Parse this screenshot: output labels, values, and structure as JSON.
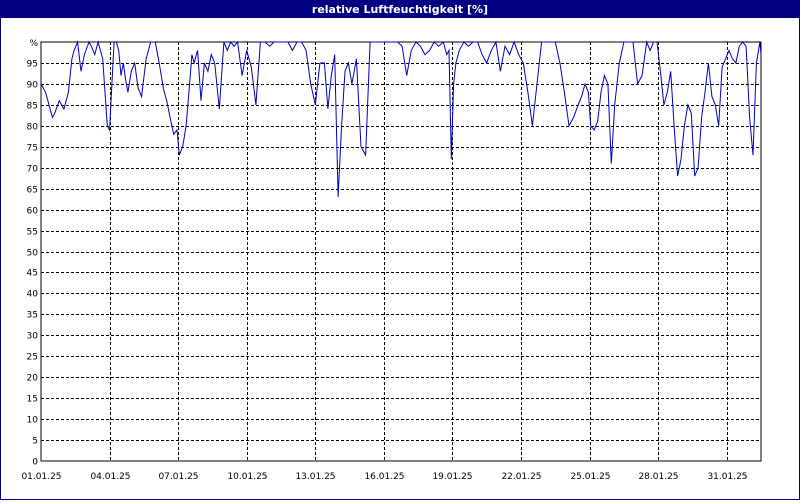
{
  "window": {
    "title": "relative Luftfeuchtigkeit [%]"
  },
  "chart_data": {
    "type": "line",
    "title": "relative Luftfeuchtigkeit [%]",
    "y_unit_label": "%",
    "ylim": [
      0,
      100
    ],
    "y_ticks": [
      0,
      5,
      10,
      15,
      20,
      25,
      30,
      35,
      40,
      45,
      50,
      55,
      60,
      65,
      70,
      75,
      80,
      85,
      90,
      95
    ],
    "x_ticks": [
      "01.01.25",
      "04.01.25",
      "07.01.25",
      "10.01.25",
      "13.01.25",
      "16.01.25",
      "19.01.25",
      "22.01.25",
      "25.01.25",
      "28.01.25",
      "31.01.25"
    ],
    "x_range_days": [
      0,
      31.5
    ],
    "grid": true,
    "line_color": "#0000c0",
    "series": [
      {
        "x": [
          0.0,
          0.2,
          0.35,
          0.5,
          0.6,
          0.8,
          1.0,
          1.2,
          1.35,
          1.45,
          1.6,
          1.75,
          1.9,
          2.1,
          2.2,
          2.35,
          2.5,
          2.7,
          2.9,
          3.0,
          3.1,
          3.2,
          3.3,
          3.4,
          3.5,
          3.6,
          3.7,
          3.8,
          3.95,
          4.1,
          4.25,
          4.4,
          4.6,
          4.8,
          5.0,
          5.2,
          5.35,
          5.5,
          5.65,
          5.8,
          5.95,
          6.05,
          6.2,
          6.35,
          6.5,
          6.6,
          6.7,
          6.85,
          7.0,
          7.15,
          7.3,
          7.45,
          7.6,
          7.8,
          8.0,
          8.15,
          8.3,
          8.45,
          8.6,
          8.8,
          9.0,
          9.2,
          9.4,
          9.6,
          9.8,
          10.0,
          10.2,
          10.4,
          10.6,
          10.8,
          11.0,
          11.2,
          11.4,
          11.6,
          11.8,
          12.0,
          12.2,
          12.4,
          12.55,
          12.7,
          12.85,
          13.0,
          13.15,
          13.3,
          13.45,
          13.6,
          13.8,
          14.0,
          14.2,
          14.4,
          14.55,
          14.7,
          14.85,
          15.0,
          15.2,
          15.4,
          15.6,
          15.8,
          16.0,
          16.2,
          16.4,
          16.6,
          16.8,
          17.0,
          17.2,
          17.4,
          17.6,
          17.75,
          17.85,
          17.95,
          18.05,
          18.15,
          18.3,
          18.5,
          18.7,
          18.9,
          19.1,
          19.3,
          19.5,
          19.7,
          19.9,
          20.1,
          20.3,
          20.5,
          20.7,
          20.9,
          21.1,
          21.3,
          21.5,
          21.7,
          21.9,
          22.1,
          22.3,
          22.5,
          22.7,
          22.9,
          23.1,
          23.3,
          23.5,
          23.65,
          23.8,
          23.95,
          24.05,
          24.2,
          24.35,
          24.5,
          24.65,
          24.8,
          24.95,
          25.1,
          25.3,
          25.5,
          25.7,
          25.9,
          26.1,
          26.3,
          26.5,
          26.65,
          26.8,
          26.95,
          27.1,
          27.25,
          27.4,
          27.55,
          27.7,
          27.85,
          28.0,
          28.15,
          28.3,
          28.45,
          28.6,
          28.75,
          28.9,
          29.05,
          29.2,
          29.35,
          29.5,
          29.65,
          29.8,
          29.95,
          30.1,
          30.25,
          30.4,
          30.55,
          30.7,
          30.85,
          31.0,
          31.15,
          31.3,
          31.45,
          31.5
        ],
        "y": [
          90,
          88,
          85,
          82,
          83,
          86,
          84,
          88,
          96,
          98,
          100,
          93,
          97,
          100,
          99,
          97,
          100,
          96,
          80,
          79,
          90,
          100,
          100,
          98,
          92,
          95,
          91,
          88,
          93,
          95,
          89,
          87,
          96,
          100,
          100,
          94,
          89,
          86,
          82,
          78,
          79,
          73,
          75,
          80,
          90,
          97,
          95,
          98,
          86,
          95,
          93,
          97,
          95,
          84,
          100,
          98,
          100,
          99,
          100,
          92,
          98,
          94,
          85,
          100,
          100,
          99,
          100,
          100,
          100,
          100,
          98,
          100,
          100,
          98,
          90,
          85,
          95,
          95,
          84,
          92,
          97,
          63,
          80,
          93,
          95,
          90,
          96,
          75,
          73,
          100,
          100,
          100,
          100,
          100,
          100,
          100,
          100,
          99,
          92,
          98,
          100,
          99,
          97,
          98,
          100,
          99,
          100,
          97,
          98,
          72,
          90,
          95,
          98,
          100,
          99,
          100,
          100,
          97,
          95,
          98,
          100,
          93,
          99,
          97,
          100,
          97,
          95,
          88,
          80,
          90,
          100,
          100,
          100,
          100,
          95,
          88,
          80,
          82,
          85,
          87,
          90,
          88,
          80,
          79,
          81,
          88,
          92,
          90,
          71,
          85,
          95,
          100,
          100,
          100,
          90,
          92,
          100,
          98,
          100,
          100,
          93,
          85,
          88,
          93,
          80,
          68,
          72,
          80,
          85,
          83,
          68,
          70,
          82,
          88,
          95,
          87,
          85,
          80,
          94,
          96,
          98,
          96,
          95,
          99,
          100,
          99,
          82,
          73,
          95,
          100,
          97
        ]
      }
    ]
  }
}
